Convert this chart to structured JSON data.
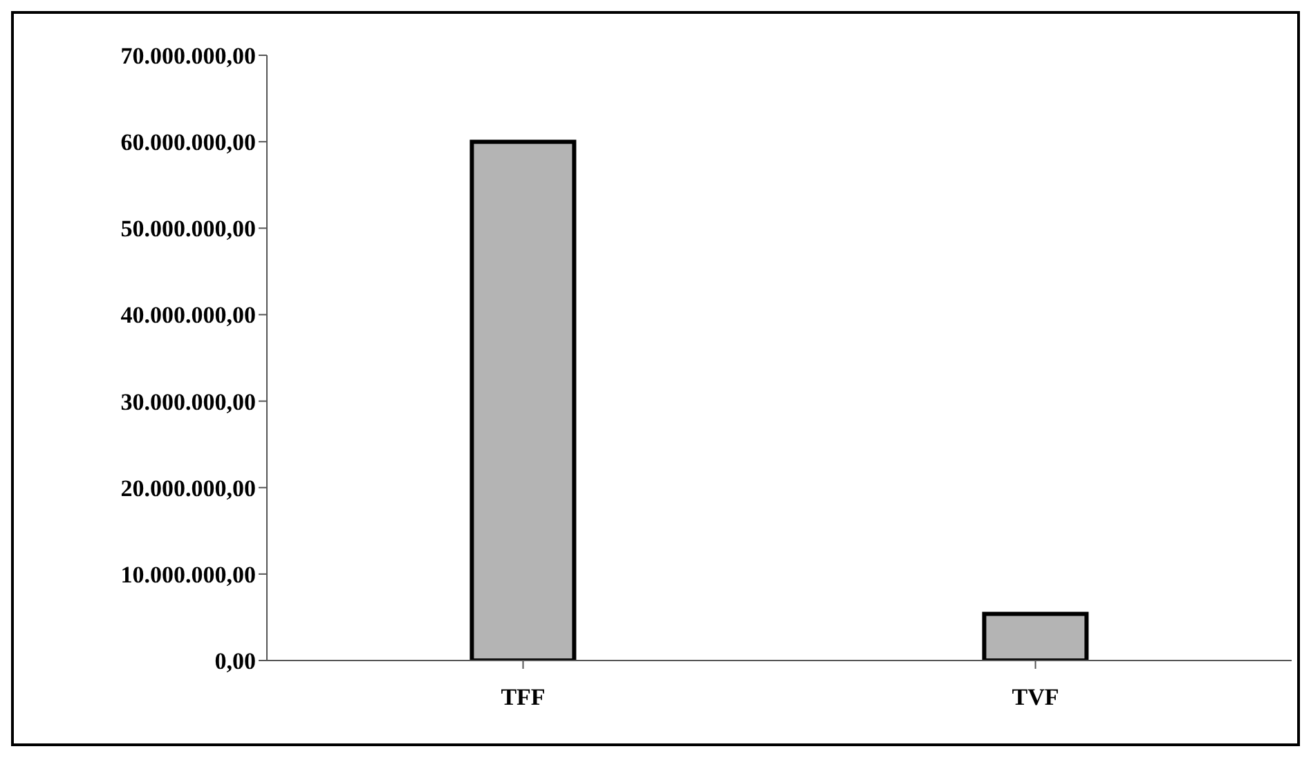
{
  "chart_data": {
    "type": "bar",
    "categories": [
      "TFF",
      "TVF"
    ],
    "values": [
      60000000,
      5400000
    ],
    "color": "#b4b4b4",
    "ylim": [
      0,
      70000000
    ],
    "yticks": [
      {
        "value": 0,
        "label": "0,00"
      },
      {
        "value": 10000000,
        "label": "10.000.000,00"
      },
      {
        "value": 20000000,
        "label": "20.000.000,00"
      },
      {
        "value": 30000000,
        "label": "30.000.000,00"
      },
      {
        "value": 40000000,
        "label": "40.000.000,00"
      },
      {
        "value": 50000000,
        "label": "50.000.000,00"
      },
      {
        "value": 60000000,
        "label": "60.000.000,00"
      },
      {
        "value": 70000000,
        "label": "70.000.000,00"
      }
    ],
    "grid": false,
    "legend": false
  }
}
